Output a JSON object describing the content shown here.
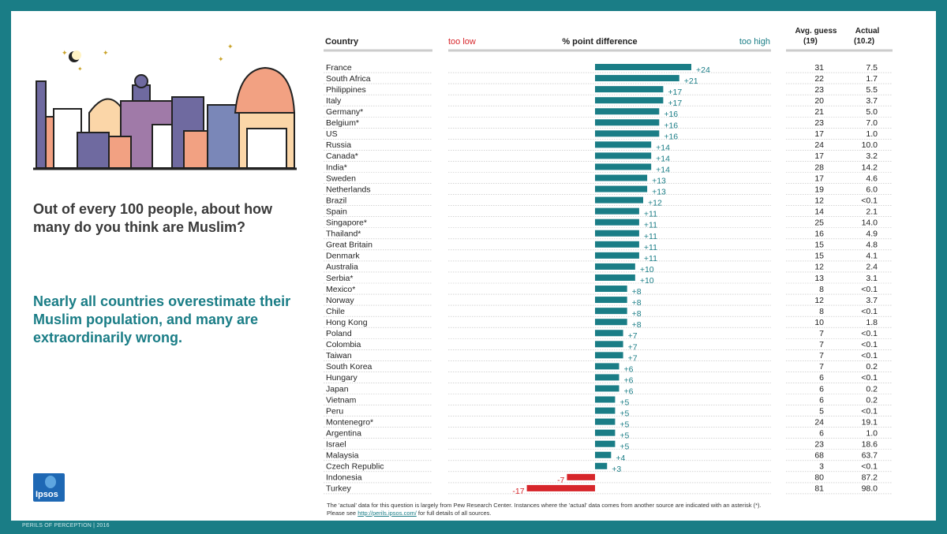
{
  "question": "Out of every 100 people, about how many do you think are Muslim?",
  "headline": "Nearly all countries overestimate their Muslim population, and many are extraordinarily wrong.",
  "logo": {
    "text": "Ipsos"
  },
  "footer_label": "PERILS OF PERCEPTION | 2016",
  "note": {
    "line1": "The 'actual' data for this question is largely from Pew Research Center. Instances where the 'actual' data comes from another source are indicated with an asterisk (*).",
    "line2_prefix": "Please see ",
    "link": "http://perils.ipsos.com/",
    "line2_suffix": " for full details of all sources."
  },
  "colors": {
    "frame": "#1a7d86",
    "positive_bar": "#1a7d86",
    "negative_bar": "#d7262b",
    "too_low": "#d7262b",
    "too_high": "#1a7d86"
  },
  "chart_data": {
    "type": "bar",
    "orientation": "horizontal",
    "headers": {
      "country": "Country",
      "too_low": "too low",
      "diff": "% point difference",
      "too_high": "too high",
      "avg_guess": "Avg. guess",
      "avg_guess_sub": "(19)",
      "actual": "Actual",
      "actual_sub": "(10.2)"
    },
    "categories": [
      "France",
      "South Africa",
      "Philippines",
      "Italy",
      "Germany*",
      "Belgium*",
      "US",
      "Russia",
      "Canada*",
      "India*",
      "Sweden",
      "Netherlands",
      "Brazil",
      "Spain",
      "Singapore*",
      "Thailand*",
      "Great Britain",
      "Denmark",
      "Australia",
      "Serbia*",
      "Mexico*",
      "Norway",
      "Chile",
      "Hong Kong",
      "Poland",
      "Colombia",
      "Taiwan",
      "South Korea",
      "Hungary",
      "Japan",
      "Vietnam",
      "Peru",
      "Montenegro*",
      "Argentina",
      "Israel",
      "Malaysia",
      "Czech Republic",
      "Indonesia",
      "Turkey"
    ],
    "values": [
      24,
      21,
      17,
      17,
      16,
      16,
      16,
      14,
      14,
      14,
      13,
      13,
      12,
      11,
      11,
      11,
      11,
      11,
      10,
      10,
      8,
      8,
      8,
      8,
      7,
      7,
      7,
      6,
      6,
      6,
      5,
      5,
      5,
      5,
      5,
      4,
      3,
      -7,
      -17
    ],
    "labels": [
      "+24",
      "+21",
      "+17",
      "+17",
      "+16",
      "+16",
      "+16",
      "+14",
      "+14",
      "+14",
      "+13",
      "+13",
      "+12",
      "+11",
      "+11",
      "+11",
      "+11",
      "+11",
      "+10",
      "+10",
      "+8",
      "+8",
      "+8",
      "+8",
      "+7",
      "+7",
      "+7",
      "+6",
      "+6",
      "+6",
      "+5",
      "+5",
      "+5",
      "+5",
      "+5",
      "+4",
      "+3",
      "-7",
      "-17"
    ],
    "avg_guess": [
      "31",
      "22",
      "23",
      "20",
      "21",
      "23",
      "17",
      "24",
      "17",
      "28",
      "17",
      "19",
      "12",
      "14",
      "25",
      "16",
      "15",
      "15",
      "12",
      "13",
      "8",
      "12",
      "8",
      "10",
      "7",
      "7",
      "7",
      "7",
      "6",
      "6",
      "6",
      "5",
      "24",
      "6",
      "23",
      "68",
      "3",
      "80",
      "81"
    ],
    "actual": [
      "7.5",
      "1.7",
      "5.5",
      "3.7",
      "5.0",
      "7.0",
      "1.0",
      "10.0",
      "3.2",
      "14.2",
      "4.6",
      "6.0",
      "<0.1",
      "2.1",
      "14.0",
      "4.9",
      "4.8",
      "4.1",
      "2.4",
      "3.1",
      "<0.1",
      "3.7",
      "<0.1",
      "1.8",
      "<0.1",
      "<0.1",
      "<0.1",
      "0.2",
      "<0.1",
      "0.2",
      "0.2",
      "<0.1",
      "19.1",
      "1.0",
      "18.6",
      "63.7",
      "<0.1",
      "87.2",
      "98.0"
    ],
    "xlim": [
      -24,
      24
    ]
  }
}
